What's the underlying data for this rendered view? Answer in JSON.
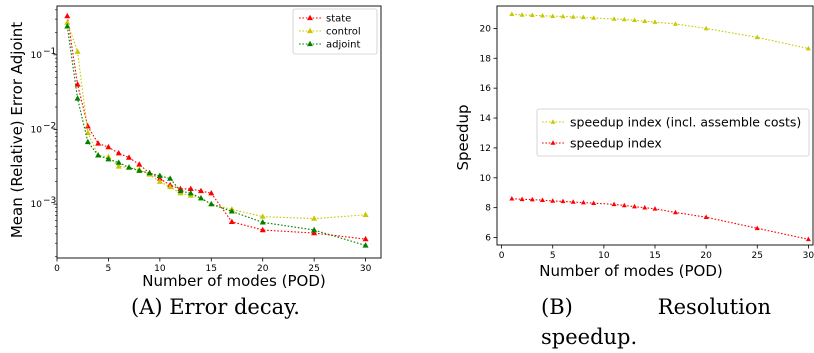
{
  "captions": {
    "a": "(A) Error decay.",
    "b_line1": "(B) Resolution",
    "b_line2": "speedup."
  },
  "chart_data": [
    {
      "type": "line",
      "xlabel": "Number of modes (POD)",
      "ylabel": "Mean (Relative) Error Adjoint",
      "yscale": "log",
      "xlim": [
        0,
        31.5
      ],
      "ylim": [
        0.00019,
        0.45
      ],
      "xticks": [
        0,
        5,
        10,
        15,
        20,
        25,
        30
      ],
      "yticks": [
        0.001,
        0.01,
        0.1
      ],
      "ytick_labels": [
        "10",
        "10",
        "10"
      ],
      "ytick_exponents": [
        "-3",
        "-2",
        "-1"
      ],
      "legend_position": "upper right",
      "grid": false,
      "series": [
        {
          "name": "state",
          "color": "#ff0000",
          "marker": "triangle",
          "x": [
            1,
            2,
            3,
            4,
            5,
            6,
            7,
            8,
            9,
            10,
            11,
            12,
            13,
            14,
            15,
            17,
            20,
            25,
            30
          ],
          "y": [
            0.33,
            0.04,
            0.011,
            0.0065,
            0.0058,
            0.0048,
            0.0042,
            0.0034,
            0.0026,
            0.0022,
            0.0018,
            0.0016,
            0.0016,
            0.0015,
            0.0014,
            0.00058,
            0.00045,
            0.00041,
            0.00034
          ]
        },
        {
          "name": "control",
          "color": "#c8c800",
          "marker": "triangle",
          "x": [
            1,
            2,
            3,
            4,
            5,
            6,
            7,
            8,
            9,
            10,
            11,
            12,
            13,
            14,
            15,
            17,
            20,
            25,
            30
          ],
          "y": [
            0.27,
            0.11,
            0.009,
            0.0045,
            0.0043,
            0.0032,
            0.0031,
            0.0029,
            0.0025,
            0.002,
            0.0017,
            0.0014,
            0.0013,
            0.0012,
            0.001,
            0.00085,
            0.00068,
            0.00064,
            0.00072
          ]
        },
        {
          "name": "adjoint",
          "color": "#008000",
          "marker": "triangle",
          "x": [
            1,
            2,
            3,
            4,
            5,
            6,
            7,
            8,
            9,
            10,
            11,
            12,
            13,
            14,
            15,
            17,
            20,
            25,
            30
          ],
          "y": [
            0.24,
            0.026,
            0.0068,
            0.0045,
            0.004,
            0.0036,
            0.0031,
            0.0028,
            0.0026,
            0.0024,
            0.0022,
            0.0015,
            0.0014,
            0.0012,
            0.001,
            0.0008,
            0.00057,
            0.00045,
            0.00028
          ]
        }
      ]
    },
    {
      "type": "line",
      "xlabel": "Number of modes (POD)",
      "ylabel": "Speedup",
      "xlim": [
        -0.45,
        30.45
      ],
      "ylim": [
        5.5,
        21.5
      ],
      "xticks": [
        0,
        5,
        10,
        15,
        20,
        25,
        30
      ],
      "yticks": [
        6,
        8,
        10,
        12,
        14,
        16,
        18,
        20
      ],
      "legend_position": "center right",
      "grid": false,
      "series": [
        {
          "name": "speedup index (incl. assemble costs)",
          "color": "#c8c800",
          "marker": "triangle",
          "x": [
            1,
            2,
            3,
            4,
            5,
            6,
            7,
            8,
            9,
            11,
            12,
            13,
            14,
            15,
            17,
            20,
            25,
            30
          ],
          "y": [
            20.95,
            20.9,
            20.88,
            20.85,
            20.82,
            20.8,
            20.77,
            20.74,
            20.7,
            20.63,
            20.6,
            20.55,
            20.48,
            20.42,
            20.3,
            20.0,
            19.4,
            18.65
          ]
        },
        {
          "name": "speedup index",
          "color": "#ff0000",
          "marker": "triangle",
          "x": [
            1,
            2,
            3,
            4,
            5,
            6,
            7,
            8,
            9,
            11,
            12,
            13,
            14,
            15,
            17,
            20,
            25,
            30
          ],
          "y": [
            8.6,
            8.56,
            8.54,
            8.5,
            8.45,
            8.42,
            8.38,
            8.34,
            8.3,
            8.22,
            8.15,
            8.07,
            8.0,
            7.92,
            7.68,
            7.36,
            6.62,
            5.88
          ]
        }
      ]
    }
  ]
}
